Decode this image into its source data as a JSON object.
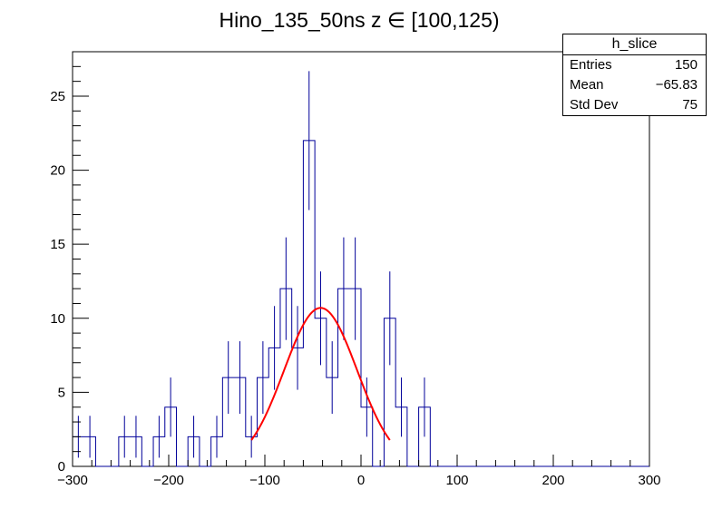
{
  "chart_data": {
    "type": "bar",
    "title": "Hino_135_50ns z  ∈ [100,125)",
    "xlim": [
      -300,
      300
    ],
    "ylim": [
      0,
      28
    ],
    "x_ticks": [
      -300,
      -200,
      -100,
      0,
      100,
      200,
      300
    ],
    "x_tick_labels": [
      "−300",
      "−200",
      "−100",
      "0",
      "100",
      "200",
      "300"
    ],
    "y_ticks": [
      0,
      5,
      10,
      15,
      20,
      25
    ],
    "y_tick_labels": [
      "0",
      "5",
      "10",
      "15",
      "20",
      "25"
    ],
    "grid": false,
    "legend": "none",
    "histogram": {
      "bin_width": 12,
      "bin_starts": [
        -300,
        -288,
        -276,
        -264,
        -252,
        -240,
        -228,
        -216,
        -204,
        -192,
        -180,
        -168,
        -156,
        -144,
        -132,
        -120,
        -108,
        -96,
        -84,
        -72,
        -60,
        -48,
        -36,
        -24,
        -12,
        0,
        12,
        24,
        36,
        48,
        60,
        72,
        84,
        96,
        108,
        120,
        132,
        144,
        156,
        168,
        180,
        192,
        204,
        216,
        228,
        240,
        252,
        264,
        276,
        288
      ],
      "values": [
        2,
        2,
        0,
        0,
        2,
        2,
        0,
        2,
        4,
        0,
        2,
        0,
        2,
        6,
        6,
        2,
        6,
        8,
        12,
        8,
        22,
        10,
        6,
        12,
        12,
        4,
        0,
        10,
        4,
        0,
        4,
        0,
        0,
        0,
        0,
        0,
        0,
        0,
        0,
        0,
        0,
        0,
        0,
        0,
        0,
        0,
        0,
        0,
        0,
        0
      ],
      "color": "#000099"
    },
    "fit": {
      "type": "gaussian",
      "color": "#ff0000",
      "amplitude": 10.7,
      "mean": -42,
      "sigma": 38,
      "range": [
        -114,
        30
      ]
    },
    "stats_box": {
      "title": "h_slice",
      "entries_label": "Entries",
      "entries": "150",
      "mean_label": "Mean",
      "mean": "−65.83",
      "stddev_label": "Std Dev",
      "stddev": "75"
    }
  }
}
